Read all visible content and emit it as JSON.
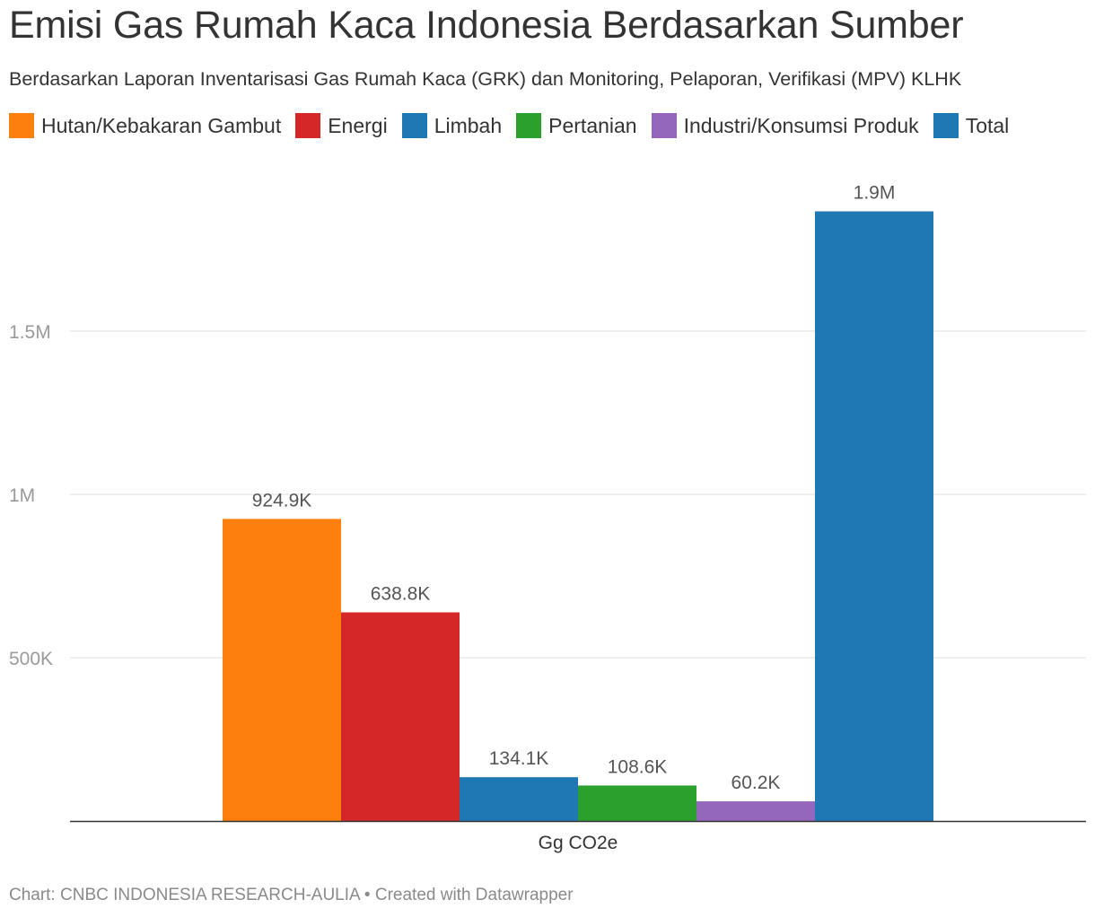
{
  "title": "Emisi Gas Rumah Kaca Indonesia Berdasarkan Sumber",
  "subtitle": "Berdasarkan Laporan Inventarisasi Gas Rumah Kaca (GRK) dan Monitoring, Pelaporan, Verifikasi (MPV) KLHK",
  "footer": "Chart: CNBC INDONESIA RESEARCH-AULIA • Created with Datawrapper",
  "chart_data": {
    "type": "bar",
    "title": "Emisi Gas Rumah Kaca Indonesia Berdasarkan Sumber",
    "subtitle": "Berdasarkan Laporan Inventarisasi Gas Rumah Kaca (GRK) dan Monitoring, Pelaporan, Verifikasi (MPV) KLHK",
    "categories": [
      "Gg CO2e"
    ],
    "xlabel": "",
    "ylabel": "",
    "ylim": [
      0,
      2000000
    ],
    "grid": true,
    "legend_position": "top-left",
    "yticks": [
      {
        "value": 500000,
        "label": "500K"
      },
      {
        "value": 1000000,
        "label": "1M"
      },
      {
        "value": 1500000,
        "label": "1.5M"
      }
    ],
    "series": [
      {
        "name": "Hutan/Kebakaran Gambut",
        "values": [
          924900
        ],
        "label": "924.9K",
        "color": "#fd7f0e"
      },
      {
        "name": "Energi",
        "values": [
          638800
        ],
        "label": "638.8K",
        "color": "#d62728"
      },
      {
        "name": "Limbah",
        "values": [
          134100
        ],
        "label": "134.1K",
        "color": "#1f77b4"
      },
      {
        "name": "Pertanian",
        "values": [
          108600
        ],
        "label": "108.6K",
        "color": "#2ca02c"
      },
      {
        "name": "Industri/Konsumsi Produk",
        "values": [
          60200
        ],
        "label": "60.2K",
        "color": "#9467bd"
      },
      {
        "name": "Total",
        "values": [
          1866600
        ],
        "label": "1.9M",
        "color": "#1f77b4"
      }
    ]
  }
}
